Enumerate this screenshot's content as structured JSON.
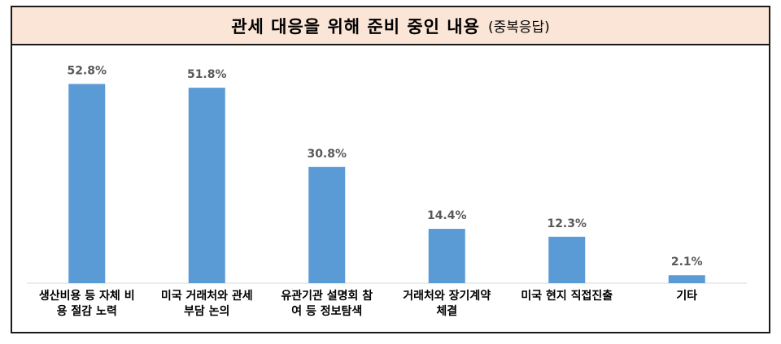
{
  "header": {
    "title": "관세 대응을 위해 준비 중인 내용",
    "subtitle": "(중복응답)"
  },
  "colors": {
    "bar": "#5b9bd5",
    "title_background": "#fbe5d6",
    "value_label": "#595959",
    "axis": "#d9d9d9"
  },
  "chart_data": {
    "type": "bar",
    "title": "관세 대응을 위해 준비 중인 내용 (중복응답)",
    "categories": [
      [
        "생산비용 등 자체 비",
        "용 절감 노력"
      ],
      [
        "미국 거래처와 관세",
        "부담 논의"
      ],
      [
        "유관기관 설명회 참",
        "여 등 정보탐색"
      ],
      [
        "거래처와 장기계약",
        "체결"
      ],
      [
        "미국 현지 직접진출"
      ],
      [
        "기타"
      ]
    ],
    "values": [
      52.8,
      51.8,
      30.8,
      14.4,
      12.3,
      2.1
    ],
    "value_labels": [
      "52.8%",
      "51.8%",
      "30.8%",
      "14.4%",
      "12.3%",
      "2.1%"
    ],
    "ylim": [
      0,
      60
    ],
    "grid": false,
    "legend": "none"
  }
}
